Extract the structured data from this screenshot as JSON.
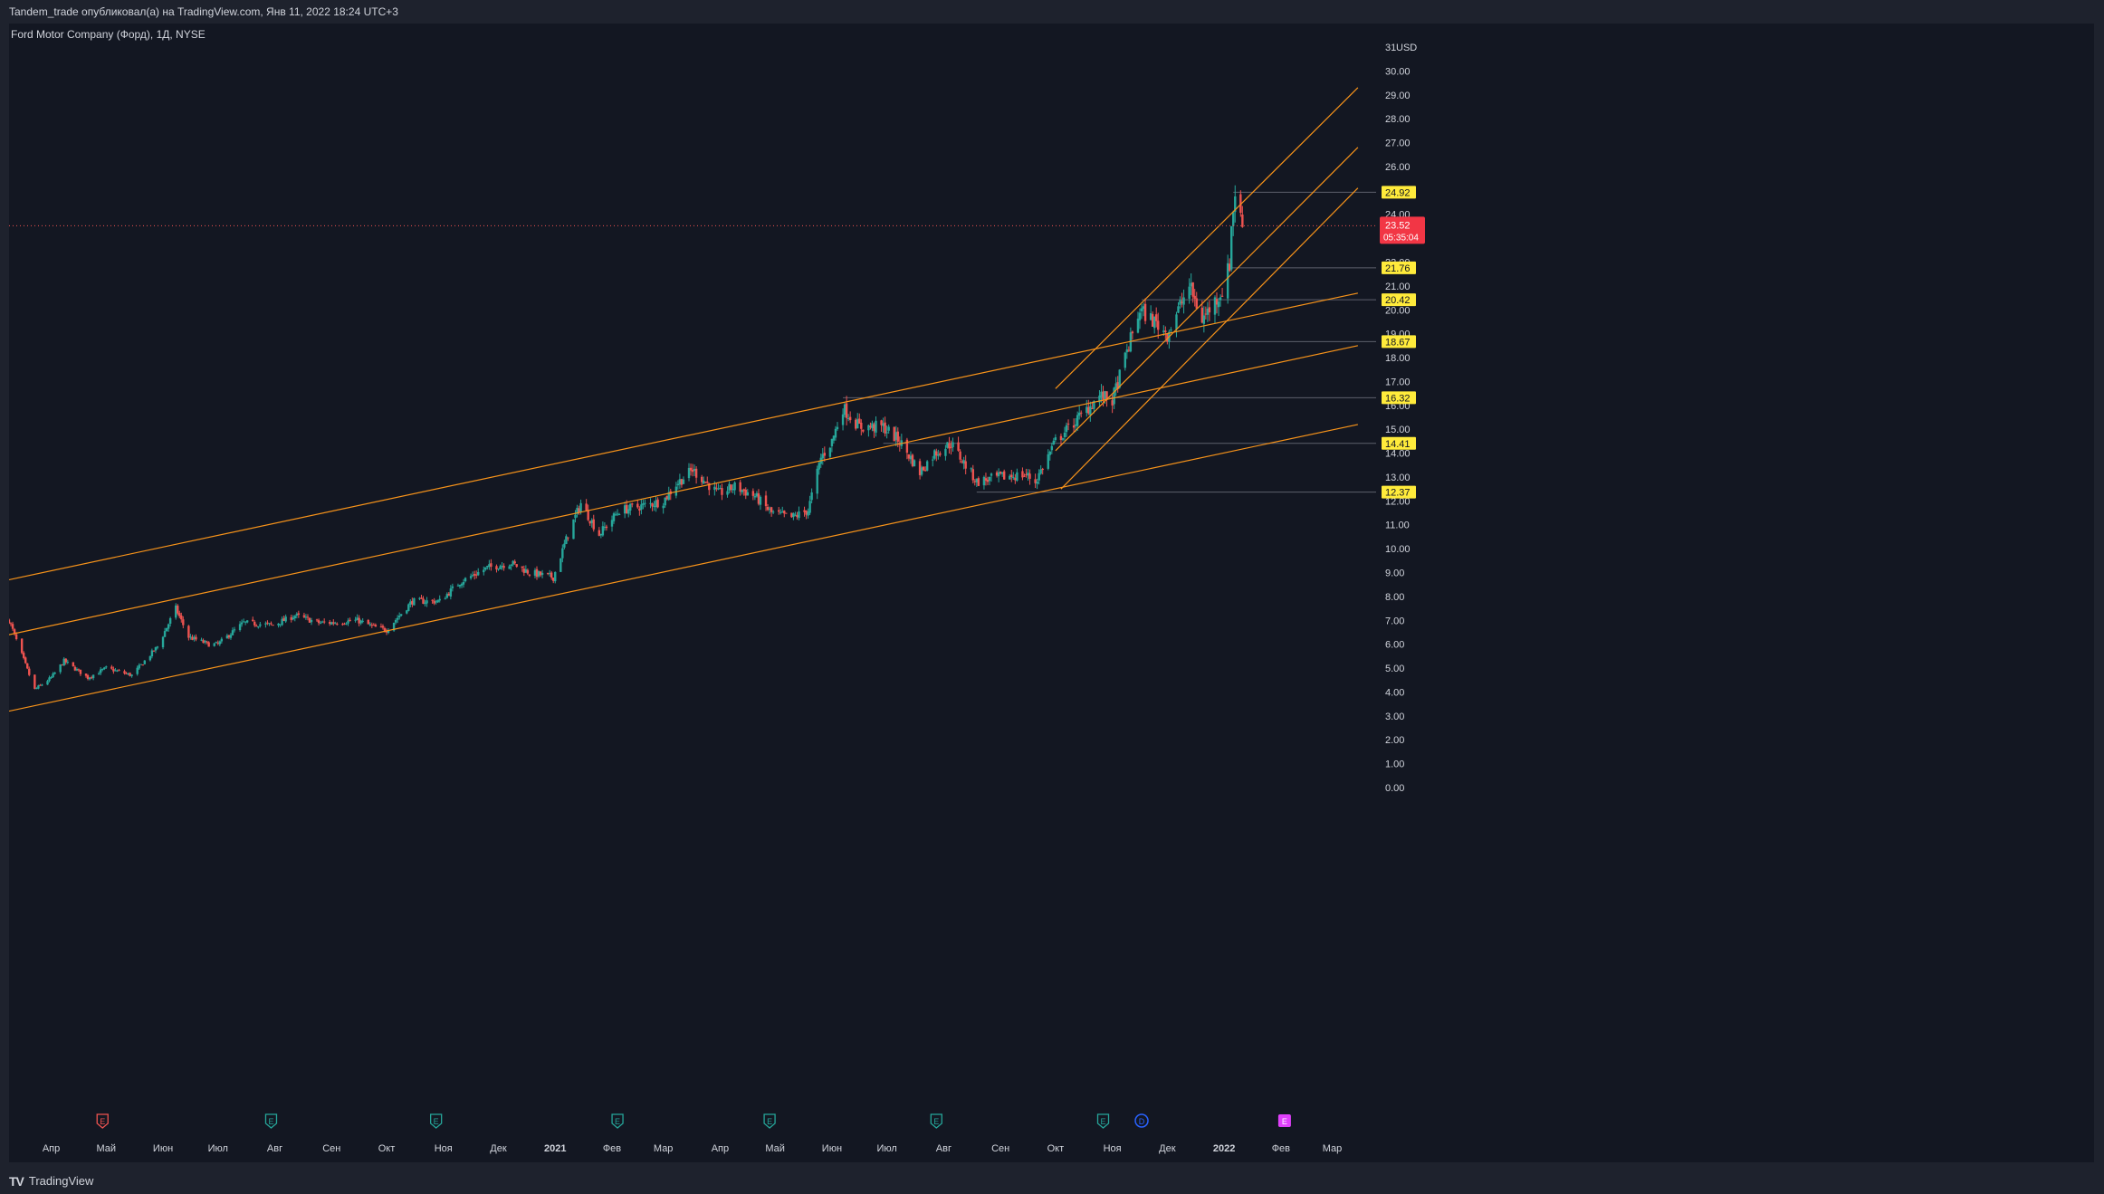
{
  "publish_note": "Tandem_trade опубликовал(а) на TradingView.com, Янв 11, 2022 18:24 UTC+3",
  "symbol_title": "Ford Motor Company (Форд), 1Д, NYSE",
  "currency": "USD",
  "brand": "TradingView",
  "colors": {
    "background": "#131722",
    "up": "#26a69a",
    "down": "#ef5350",
    "channel": "#f7931a",
    "label_bg": "#ffeb3b",
    "last_price_bg": "#f23645",
    "grid_text": "#d1d4dc"
  },
  "chart_data": {
    "type": "candlestick",
    "symbol": "F",
    "timeframe": "1Д",
    "ylim": [
      0,
      31
    ],
    "y_ticks": [
      "0.00",
      "1.00",
      "2.00",
      "3.00",
      "4.00",
      "5.00",
      "6.00",
      "7.00",
      "8.00",
      "9.00",
      "10.00",
      "11.00",
      "12.00",
      "13.00",
      "14.00",
      "15.00",
      "16.00",
      "17.00",
      "18.00",
      "19.00",
      "20.00",
      "21.00",
      "22.00",
      "23.00",
      "24.00",
      "25.00",
      "26.00",
      "27.00",
      "28.00",
      "29.00",
      "30.00",
      "31"
    ],
    "x_labels": [
      {
        "label": "Апр",
        "date": "2020-04-01"
      },
      {
        "label": "Май",
        "date": "2020-05-01"
      },
      {
        "label": "Июн",
        "date": "2020-06-01"
      },
      {
        "label": "Июл",
        "date": "2020-07-01"
      },
      {
        "label": "Авг",
        "date": "2020-08-01"
      },
      {
        "label": "Сен",
        "date": "2020-09-01"
      },
      {
        "label": "Окт",
        "date": "2020-10-01"
      },
      {
        "label": "Ноя",
        "date": "2020-11-01"
      },
      {
        "label": "Дек",
        "date": "2020-12-01"
      },
      {
        "label": "2021",
        "date": "2021-01-01",
        "bold": true
      },
      {
        "label": "Фев",
        "date": "2021-02-01"
      },
      {
        "label": "Мар",
        "date": "2021-03-01"
      },
      {
        "label": "Апр",
        "date": "2021-04-01"
      },
      {
        "label": "Май",
        "date": "2021-05-01"
      },
      {
        "label": "Июн",
        "date": "2021-06-01"
      },
      {
        "label": "Июл",
        "date": "2021-07-01"
      },
      {
        "label": "Авг",
        "date": "2021-08-01"
      },
      {
        "label": "Сен",
        "date": "2021-09-01"
      },
      {
        "label": "Окт",
        "date": "2021-10-01"
      },
      {
        "label": "Ноя",
        "date": "2021-11-01"
      },
      {
        "label": "Дек",
        "date": "2021-12-01"
      },
      {
        "label": "2022",
        "date": "2022-01-01",
        "bold": true
      },
      {
        "label": "Фев",
        "date": "2022-02-01"
      },
      {
        "label": "Мар",
        "date": "2022-03-01"
      }
    ],
    "price_path": [
      [
        "2020-03-09",
        7.0
      ],
      [
        "2020-03-23",
        4.1
      ],
      [
        "2020-04-01",
        4.6
      ],
      [
        "2020-04-08",
        5.3
      ],
      [
        "2020-04-21",
        4.6
      ],
      [
        "2020-05-01",
        5.0
      ],
      [
        "2020-05-15",
        4.7
      ],
      [
        "2020-05-29",
        5.9
      ],
      [
        "2020-06-08",
        7.5
      ],
      [
        "2020-06-15",
        6.3
      ],
      [
        "2020-06-26",
        6.0
      ],
      [
        "2020-07-01",
        6.0
      ],
      [
        "2020-07-15",
        6.9
      ],
      [
        "2020-07-31",
        6.8
      ],
      [
        "2020-08-12",
        7.2
      ],
      [
        "2020-08-25",
        6.9
      ],
      [
        "2020-09-01",
        6.9
      ],
      [
        "2020-09-15",
        7.0
      ],
      [
        "2020-09-25",
        6.7
      ],
      [
        "2020-10-01",
        6.6
      ],
      [
        "2020-10-15",
        7.8
      ],
      [
        "2020-10-30",
        7.8
      ],
      [
        "2020-11-10",
        8.6
      ],
      [
        "2020-11-25",
        9.2
      ],
      [
        "2020-12-08",
        9.4
      ],
      [
        "2020-12-18",
        9.0
      ],
      [
        "2020-12-31",
        8.8
      ],
      [
        "2021-01-08",
        10.6
      ],
      [
        "2021-01-15",
        11.9
      ],
      [
        "2021-01-25",
        10.6
      ],
      [
        "2021-02-05",
        11.6
      ],
      [
        "2021-02-18",
        11.8
      ],
      [
        "2021-03-01",
        12.0
      ],
      [
        "2021-03-08",
        12.7
      ],
      [
        "2021-03-17",
        13.3
      ],
      [
        "2021-03-31",
        12.3
      ],
      [
        "2021-04-09",
        12.6
      ],
      [
        "2021-04-20",
        12.2
      ],
      [
        "2021-04-29",
        11.5
      ],
      [
        "2021-05-10",
        11.3
      ],
      [
        "2021-05-19",
        11.6
      ],
      [
        "2021-05-26",
        13.8
      ],
      [
        "2021-06-01",
        14.5
      ],
      [
        "2021-06-07",
        15.9
      ],
      [
        "2021-06-16",
        15.1
      ],
      [
        "2021-06-29",
        15.1
      ],
      [
        "2021-07-08",
        14.5
      ],
      [
        "2021-07-19",
        13.2
      ],
      [
        "2021-07-27",
        14.0
      ],
      [
        "2021-08-05",
        14.4
      ],
      [
        "2021-08-19",
        12.8
      ],
      [
        "2021-09-01",
        13.0
      ],
      [
        "2021-09-15",
        13.1
      ],
      [
        "2021-09-20",
        12.8
      ],
      [
        "2021-10-01",
        14.5
      ],
      [
        "2021-10-14",
        15.5
      ],
      [
        "2021-10-25",
        16.4
      ],
      [
        "2021-11-01",
        16.2
      ],
      [
        "2021-11-10",
        18.5
      ],
      [
        "2021-11-16",
        20.0
      ],
      [
        "2021-11-24",
        19.5
      ],
      [
        "2021-12-01",
        19.0
      ],
      [
        "2021-12-13",
        21.0
      ],
      [
        "2021-12-20",
        19.6
      ],
      [
        "2021-12-31",
        20.8
      ],
      [
        "2022-01-04",
        21.9
      ],
      [
        "2022-01-05",
        23.5
      ],
      [
        "2022-01-07",
        24.9
      ],
      [
        "2022-01-11",
        23.52
      ]
    ],
    "last_price": "23.52",
    "countdown": "05:35:04",
    "horizontal_levels": [
      "24.92",
      "21.76",
      "20.42",
      "18.67",
      "16.32",
      "14.41",
      "12.37"
    ],
    "channels": [
      {
        "name": "long-channel-upper",
        "from": [
          "2020-03-09",
          8.7
        ],
        "to": [
          "2022-03-15",
          20.7
        ]
      },
      {
        "name": "long-channel-mid",
        "from": [
          "2020-03-09",
          6.4
        ],
        "to": [
          "2022-03-15",
          18.5
        ]
      },
      {
        "name": "long-channel-lower",
        "from": [
          "2020-03-09",
          3.2
        ],
        "to": [
          "2022-03-15",
          15.2
        ]
      },
      {
        "name": "short-channel-upper",
        "from": [
          "2021-10-01",
          16.7
        ],
        "to": [
          "2022-03-15",
          29.3
        ]
      },
      {
        "name": "short-channel-mid",
        "from": [
          "2021-10-01",
          14.1
        ],
        "to": [
          "2022-03-15",
          26.8
        ]
      },
      {
        "name": "short-channel-lower",
        "from": [
          "2021-10-04",
          12.5
        ],
        "to": [
          "2022-03-15",
          25.1
        ]
      }
    ],
    "events": [
      {
        "type": "E",
        "date": "2020-04-29",
        "color": "#ef5350"
      },
      {
        "type": "E",
        "date": "2020-07-30",
        "color": "#26a69a"
      },
      {
        "type": "E",
        "date": "2020-10-28",
        "color": "#26a69a"
      },
      {
        "type": "E",
        "date": "2021-02-04",
        "color": "#26a69a"
      },
      {
        "type": "E",
        "date": "2021-04-28",
        "color": "#26a69a"
      },
      {
        "type": "E",
        "date": "2021-07-28",
        "color": "#26a69a"
      },
      {
        "type": "E",
        "date": "2021-10-27",
        "color": "#26a69a"
      },
      {
        "type": "D",
        "date": "2021-11-17",
        "color": "#2962ff"
      },
      {
        "type": "E",
        "date": "2022-02-03",
        "color": "#e040fb"
      }
    ]
  }
}
